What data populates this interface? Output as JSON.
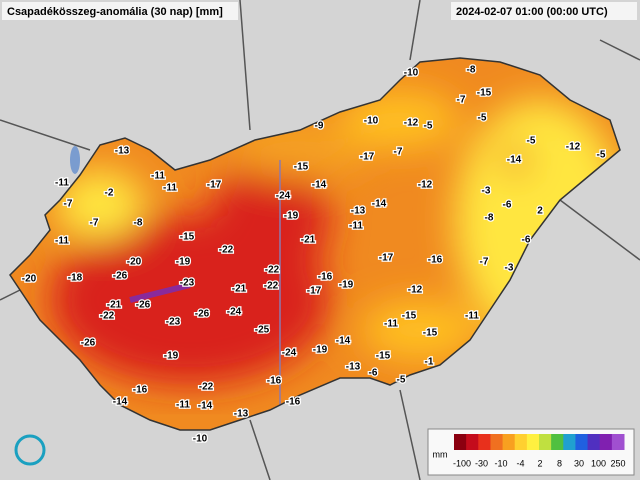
{
  "header": {
    "title": "Csapadékösszeg-anomália (30 nap) [mm]",
    "timestamp": "2024-02-07 01:00 (00:00 UTC)"
  },
  "stations": [
    -10,
    -8,
    -15,
    -7,
    -5,
    -9,
    -10,
    -12,
    -5,
    -5,
    -12,
    -5,
    -14,
    -17,
    -7,
    -13,
    -15,
    -11,
    -11,
    -11,
    -17,
    -14,
    -12,
    -3,
    -2,
    -7,
    -24,
    -13,
    -14,
    2,
    -6,
    -7,
    -8,
    -19,
    -8,
    -11,
    -11,
    -15,
    -21,
    -6,
    -22,
    -17,
    -16,
    -7,
    -3,
    -20,
    -19,
    -22,
    -16,
    -20,
    -18,
    -26,
    -23,
    -21,
    -22,
    -17,
    -19,
    -12,
    -21,
    -26,
    -22,
    -23,
    -26,
    -24,
    -15,
    -11,
    -11,
    -15,
    -26,
    -25,
    -14,
    -24,
    -19,
    -19,
    -15,
    -1,
    -13,
    -6,
    -5,
    -16,
    -16,
    -22,
    -14,
    -11,
    -14,
    -16,
    -13,
    -10
  ],
  "legend": {
    "unit": "mm",
    "labels": [
      -100,
      -30,
      -10,
      -4,
      2,
      8,
      30,
      100,
      250
    ]
  }
}
